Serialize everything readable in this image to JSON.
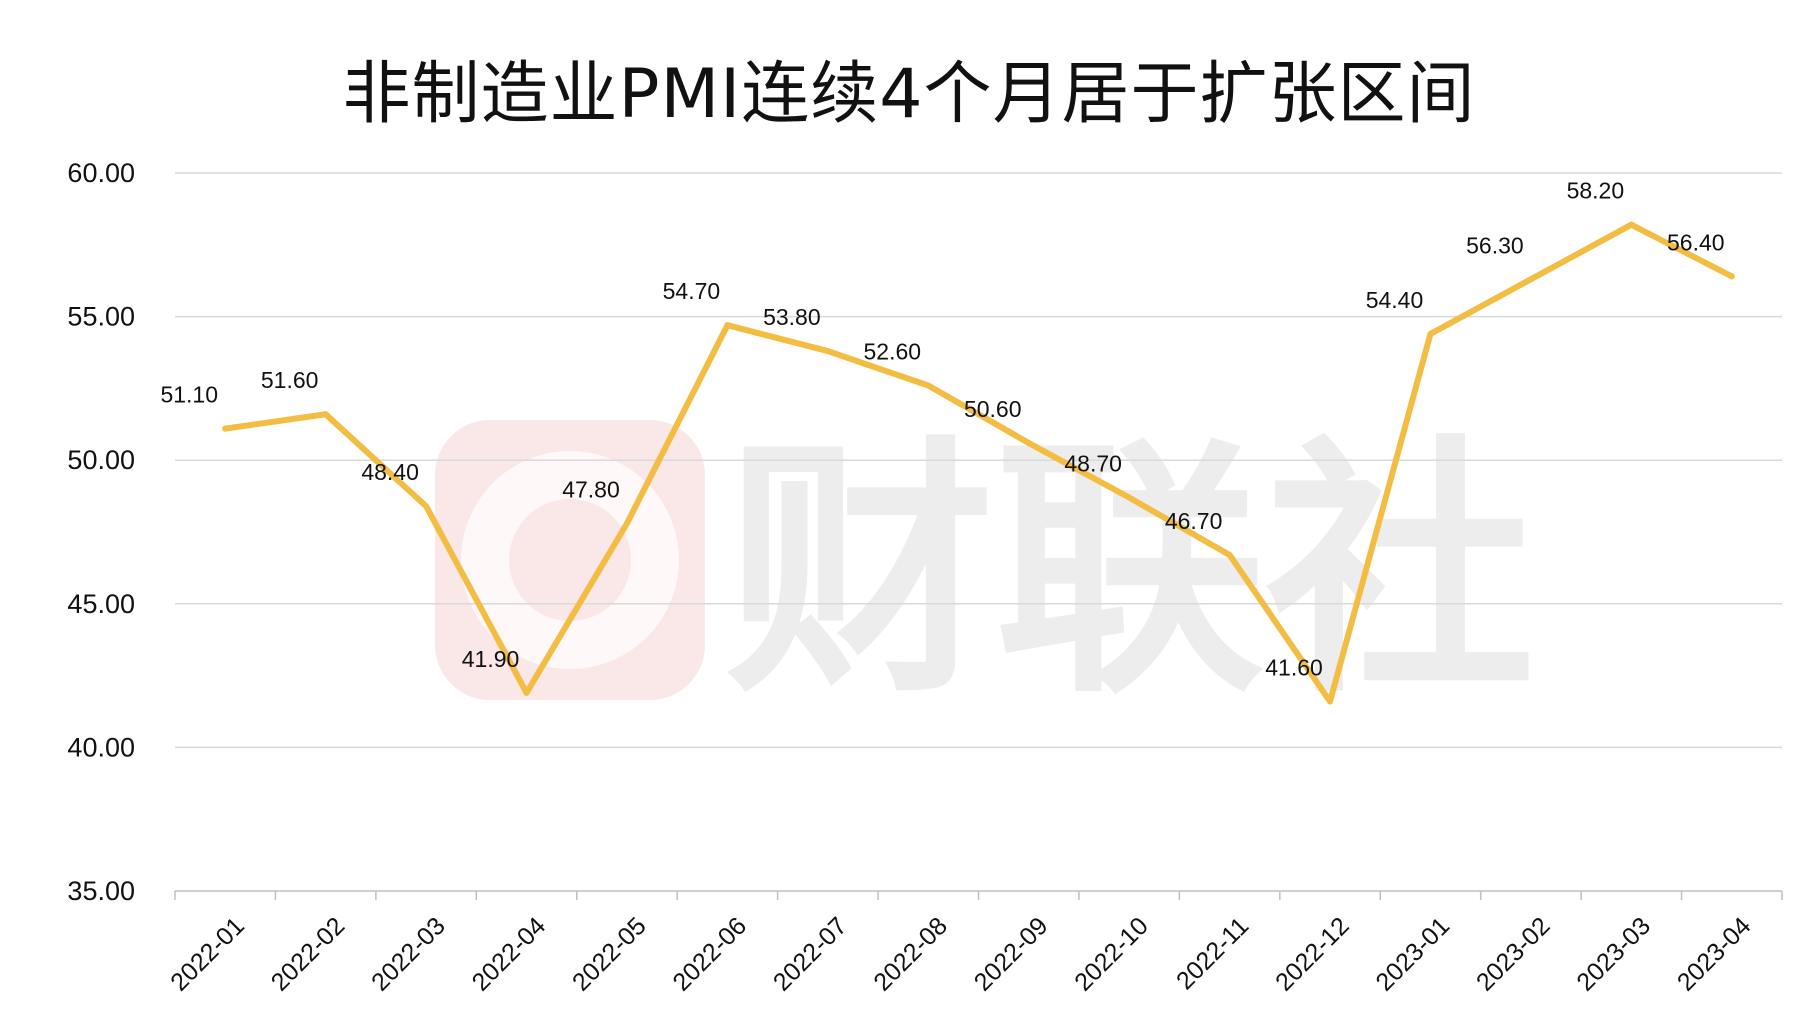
{
  "watermark": {
    "text": "财联社",
    "badge_color": "#f2c4c4",
    "text_color": "#d8d8d8"
  },
  "chart_data": {
    "type": "line",
    "title": "非制造业PMI连续4个月居于扩张区间",
    "xlabel": "",
    "ylabel": "",
    "categories": [
      "2022-01",
      "2022-02",
      "2022-03",
      "2022-04",
      "2022-05",
      "2022-06",
      "2022-07",
      "2022-08",
      "2022-09",
      "2022-10",
      "2022-11",
      "2022-12",
      "2023-01",
      "2023-02",
      "2023-03",
      "2023-04"
    ],
    "series": [
      {
        "name": "",
        "color": "#f2bd42",
        "values": [
          51.1,
          51.6,
          48.4,
          41.9,
          47.8,
          54.7,
          53.8,
          52.6,
          50.6,
          48.7,
          46.7,
          41.6,
          54.4,
          56.3,
          58.2,
          56.4
        ],
        "labels": [
          "51.10",
          "51.60",
          "48.40",
          "41.90",
          "47.80",
          "54.70",
          "53.80",
          "52.60",
          "50.60",
          "48.70",
          "46.70",
          "41.60",
          "54.40",
          "56.30",
          "58.20",
          "56.40"
        ]
      }
    ],
    "ylim": [
      35,
      60
    ],
    "yticks": [
      "35.00",
      "40.00",
      "45.00",
      "50.00",
      "55.00",
      "60.00"
    ],
    "grid": true,
    "legend": "none"
  }
}
